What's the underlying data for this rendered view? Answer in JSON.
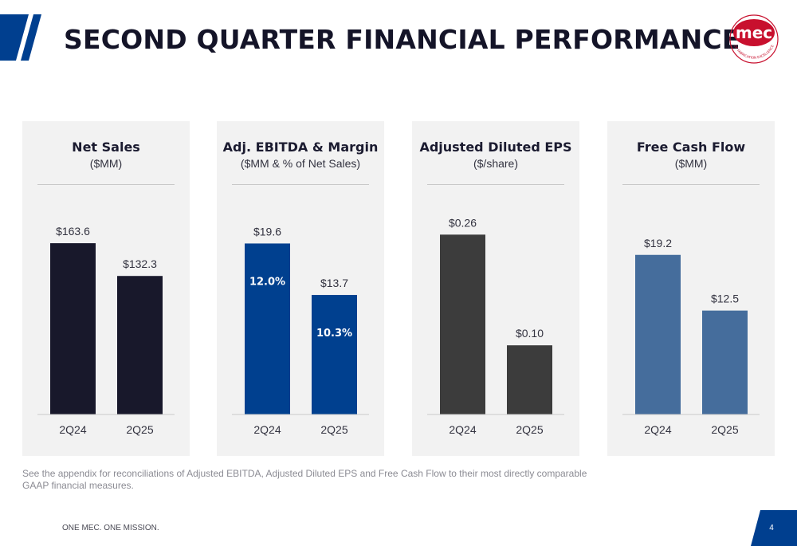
{
  "header": {
    "title": "SECOND QUARTER FINANCIAL PERFORMANCE",
    "logo_text": "mec",
    "logo_ring_text": "OF FABRICATION EXCELLENCE",
    "accent_color": "#003f8f",
    "logo_color": "#c8102e"
  },
  "chart_data": [
    {
      "type": "bar",
      "title": "Net Sales",
      "subtitle": "($MM)",
      "categories": [
        "2Q24",
        "2Q25"
      ],
      "values": [
        163.6,
        132.3
      ],
      "value_labels": [
        "$163.6",
        "$132.3"
      ],
      "inner_labels": [],
      "color": "#18182b",
      "ylim": [
        0,
        185
      ],
      "grid": false,
      "legend": "none"
    },
    {
      "type": "bar",
      "title": "Adj. EBITDA & Margin",
      "subtitle": "($MM & % of Net Sales)",
      "categories": [
        "2Q24",
        "2Q25"
      ],
      "values": [
        19.6,
        13.7
      ],
      "value_labels": [
        "$19.6",
        "$13.7"
      ],
      "inner_labels": [
        "12.0%",
        "10.3%"
      ],
      "margins": [
        12.0,
        10.3
      ],
      "color": "#00408f",
      "ylim": [
        0,
        22.2
      ],
      "grid": false,
      "legend": "none"
    },
    {
      "type": "bar",
      "title": "Adjusted Diluted EPS",
      "subtitle": "($/share)",
      "categories": [
        "2Q24",
        "2Q25"
      ],
      "values": [
        0.26,
        0.1
      ],
      "value_labels": [
        "$0.26",
        "$0.10"
      ],
      "inner_labels": [],
      "color": "#3c3c3c",
      "ylim": [
        0,
        0.28
      ],
      "grid": false,
      "legend": "none"
    },
    {
      "type": "bar",
      "title": "Free Cash Flow",
      "subtitle": "($MM)",
      "categories": [
        "2Q24",
        "2Q25"
      ],
      "values": [
        19.2,
        12.5
      ],
      "value_labels": [
        "$19.2",
        "$12.5"
      ],
      "inner_labels": [],
      "color": "#456d9c",
      "ylim": [
        0,
        23.3
      ],
      "grid": false,
      "legend": "none"
    }
  ],
  "footer": {
    "footnote": "See the appendix for reconciliations of Adjusted EBITDA, Adjusted Diluted EPS and Free Cash Flow to their most directly comparable GAAP financial measures.",
    "tagline": "ONE MEC. ONE MISSION.",
    "page_number": "4"
  }
}
